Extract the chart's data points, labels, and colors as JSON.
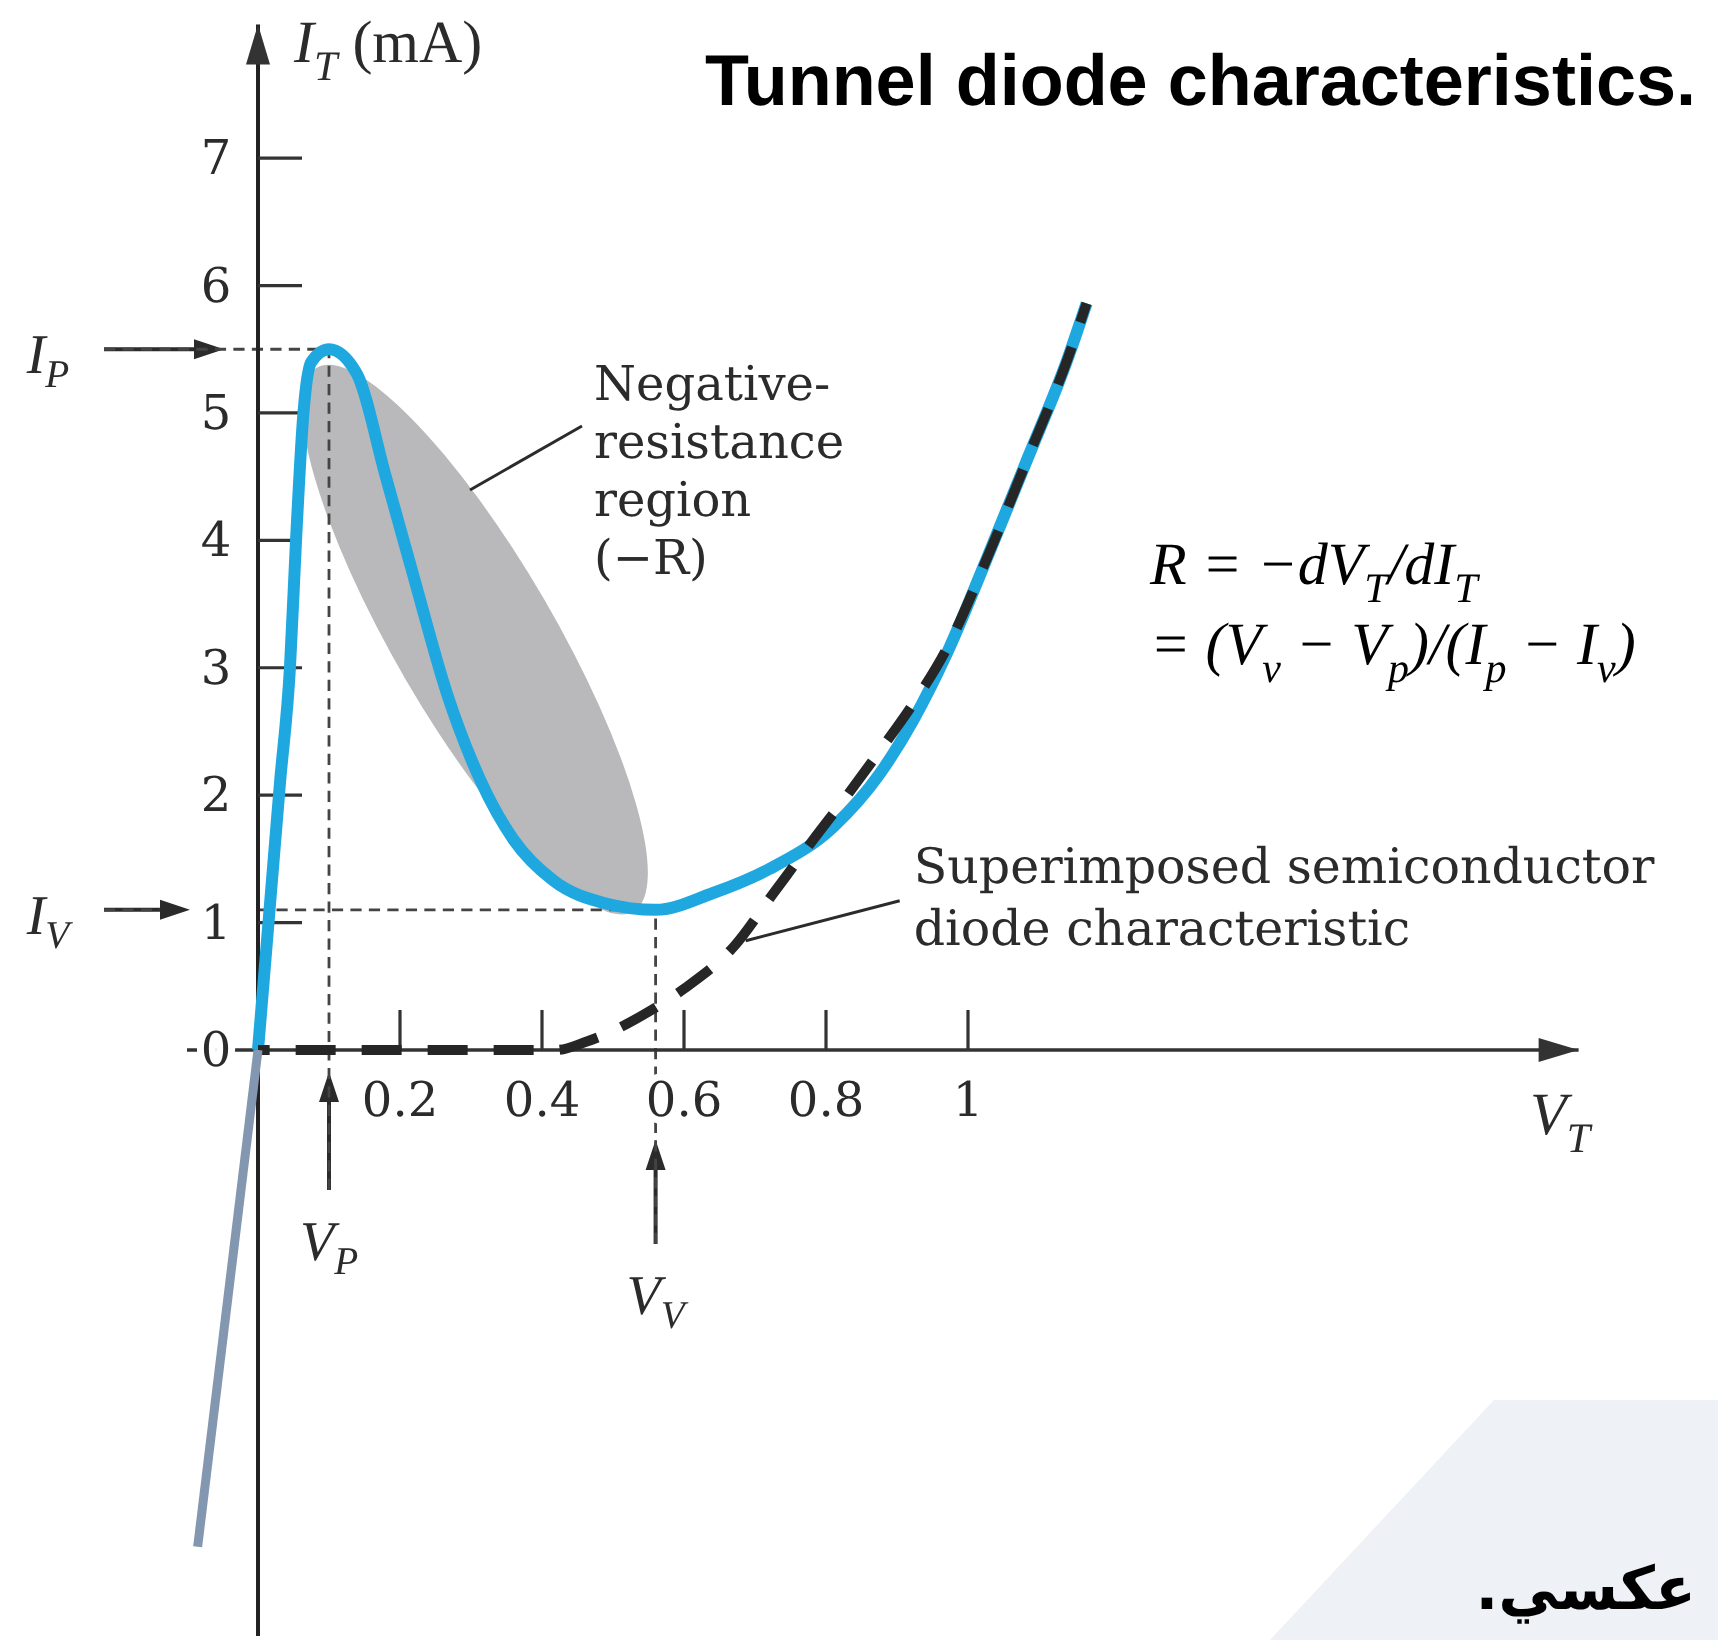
{
  "chart_data": {
    "type": "line",
    "title": "Tunnel diode characteristics.",
    "xlabel": "V$_{T}$",
    "ylabel": "I$_{T}$ (mA)",
    "xlim": [
      -0.1,
      1.86
    ],
    "ylim": [
      -4.6,
      8.05
    ],
    "xticks": [
      0.2,
      0.4,
      0.6,
      0.8,
      1
    ],
    "yticks": [
      0,
      1,
      2,
      3,
      4,
      5,
      6,
      7
    ],
    "series": [
      {
        "color": "#1fa8e0",
        "x": [
          0,
          0.031,
          0.045,
          0.054,
          0.064,
          0.075,
          0.1,
          0.139,
          0.18,
          0.22,
          0.266,
          0.313,
          0.36,
          0.416,
          0.49,
          0.56,
          0.64,
          0.72,
          0.81,
          0.876,
          0.923,
          0.97,
          1.026,
          1.083,
          1.14,
          1.167
        ],
        "values": [
          0,
          2.1,
          3.0,
          4.05,
          5.0,
          5.4,
          5.5,
          5.31,
          4.5,
          3.7,
          2.8,
          2.12,
          1.65,
          1.33,
          1.15,
          1.1,
          1.23,
          1.42,
          1.75,
          2.17,
          2.59,
          3.11,
          3.85,
          4.63,
          5.42,
          5.86
        ]
      },
      {
        "name": "Superimposed semiconductor diode characteristic",
        "color": "#262626",
        "line_style": "dashed",
        "x": [
          0,
          0.42,
          0.46,
          0.5,
          0.55,
          0.6,
          0.67,
          0.726,
          0.782,
          0.83,
          0.876,
          0.923,
          0.97,
          1.026,
          1.083,
          1.14,
          1.167
        ],
        "values": [
          0,
          0,
          0.06,
          0.15,
          0.3,
          0.48,
          0.81,
          1.23,
          1.65,
          2.0,
          2.35,
          2.72,
          3.15,
          3.85,
          4.63,
          5.42,
          5.86
        ]
      },
      {
        "color": "#8497b0",
        "x": [
          0,
          -0.085
        ],
        "values": [
          0,
          -3.9
        ]
      }
    ],
    "ref_lines": [
      {
        "axis": "y",
        "value": 5.5,
        "label": "I$_{P}$",
        "line_style": "dashed"
      },
      {
        "axis": "y",
        "value": 1.1,
        "label": "I$_{V}$",
        "line_style": "dashed"
      },
      {
        "axis": "x",
        "value": 0.1,
        "label": "V$_{P}$",
        "line_style": "dashed"
      },
      {
        "axis": "x",
        "value": 0.56,
        "label": "V$_{V}$",
        "line_style": "dashed"
      }
    ],
    "annotations": [
      "Negative-resistance region (−R)",
      "R = −dV$_{T}$/dI$_{T}$ = (V$_{v}$ − V$_{p}$)/(I$_{p}$ − I$_{v}$)",
      "عكسي."
    ]
  }
}
